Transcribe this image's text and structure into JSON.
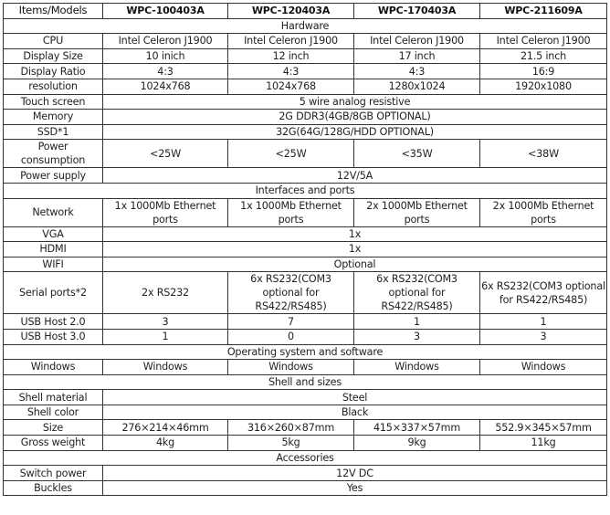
{
  "header": {
    "label": "Items/Models",
    "models": [
      "WPC-100403A",
      "WPC-120403A",
      "WPC-170403A",
      "WPC-211609A"
    ]
  },
  "rows": [
    {
      "section": "Hardware"
    },
    {
      "label": "CPU",
      "values": [
        "Intel Celeron J1900",
        "Intel Celeron J1900",
        "Intel Celeron J1900",
        "Intel Celeron J1900"
      ]
    },
    {
      "label": "Display Size",
      "values": [
        "10 inich",
        "12 inch",
        "17 inch",
        "21.5 inch"
      ]
    },
    {
      "label": "Display Ratio",
      "values": [
        "4:3",
        "4:3",
        "4:3",
        "16:9"
      ]
    },
    {
      "label": "resolution",
      "values": [
        "1024x768",
        "1024x768",
        "1280x1024",
        "1920x1080"
      ]
    },
    {
      "label": "Touch screen",
      "span": "5 wire  analog resistive"
    },
    {
      "label": "Memory",
      "span": "2G DDR3(4GB/8GB OPTIONAL)"
    },
    {
      "label": "SSD*1",
      "span": "32G(64G/128G/HDD OPTIONAL)"
    },
    {
      "label": "Power consumption",
      "values": [
        "<25W",
        "<25W",
        "<35W",
        "<38W"
      ]
    },
    {
      "label": "Power supply",
      "span": "12V/5A"
    },
    {
      "section": "Interfaces and ports"
    },
    {
      "label": "Network",
      "values": [
        "1x 1000Mb Ethernet ports",
        "1x 1000Mb Ethernet ports",
        "2x 1000Mb Ethernet ports",
        "2x 1000Mb Ethernet ports"
      ]
    },
    {
      "label": "VGA",
      "span": "1x"
    },
    {
      "label": "HDMI",
      "span": "1x"
    },
    {
      "label": "WIFI",
      "span": "Optional"
    },
    {
      "label": "Serial ports*2",
      "values": [
        "2x RS232",
        "6x RS232(COM3 optional for RS422/RS485)",
        "6x RS232(COM3 optional for RS422/RS485)",
        "6x RS232(COM3 optional for RS422/RS485)"
      ]
    },
    {
      "label": "USB Host 2.0",
      "values": [
        "3",
        "7",
        "1",
        "1"
      ]
    },
    {
      "label": "USB Host 3.0",
      "values": [
        "1",
        "0",
        "3",
        "3"
      ]
    },
    {
      "section": "Operating system and software"
    },
    {
      "label": "Windows",
      "values": [
        "Windows",
        "Windows",
        "Windows",
        "Windows"
      ]
    },
    {
      "section": "Shell and sizes"
    },
    {
      "label": "Shell material",
      "span": "Steel"
    },
    {
      "label": "Shell color",
      "span": "Black"
    },
    {
      "label": "Size",
      "values": [
        "276×214×46mm",
        "316×260×87mm",
        "415×337×57mm",
        "552.9×345×57mm"
      ]
    },
    {
      "label": "Gross weight",
      "values": [
        "4kg",
        "5kg",
        "9kg",
        "11kg"
      ]
    },
    {
      "section": "Accessories"
    },
    {
      "label": "Switch power",
      "span": "12V DC"
    },
    {
      "label": "Buckles",
      "span": "Yes"
    }
  ]
}
